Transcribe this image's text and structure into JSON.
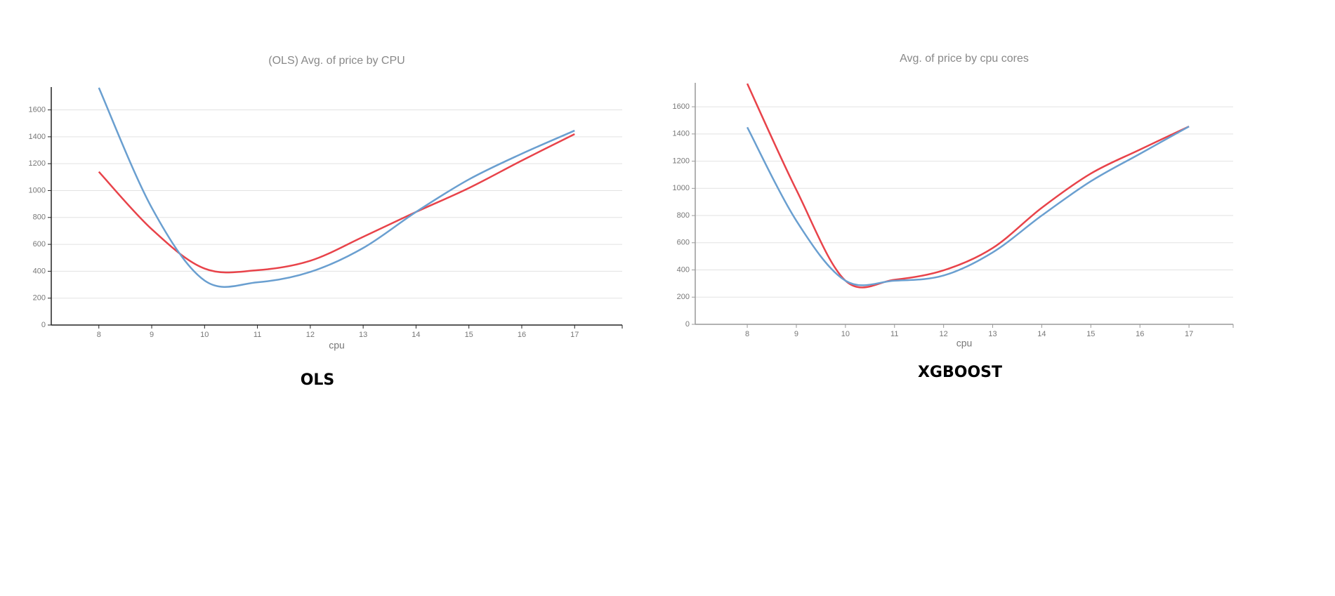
{
  "chart_data": [
    {
      "type": "line",
      "title": "(OLS) Avg. of price by CPU",
      "x_label": "cpu",
      "caption": "OLS",
      "x": [
        8,
        9,
        10,
        11,
        12,
        13,
        14,
        15,
        16,
        17
      ],
      "series": [
        {
          "color": "#e8434a",
          "values": [
            1140,
            713,
            420,
            408,
            478,
            656,
            841,
            1019,
            1223,
            1420
          ]
        },
        {
          "color": "#6a9fd0",
          "values": [
            1765,
            873,
            331,
            318,
            395,
            573,
            841,
            1083,
            1274,
            1446
          ]
        }
      ],
      "xlim": [
        7.1,
        17.9
      ],
      "xticks": [
        8,
        9,
        10,
        11,
        12,
        13,
        14,
        15,
        16,
        17
      ],
      "ylim": [
        0,
        1770
      ],
      "yticks": [
        0,
        200,
        400,
        600,
        800,
        1000,
        1200,
        1400,
        1600
      ],
      "grid": true
    },
    {
      "type": "line",
      "title": "Avg. of price by cpu cores",
      "x_label": "cpu",
      "caption": "XGBOOST",
      "x": [
        8,
        9,
        10,
        11,
        12,
        13,
        14,
        15,
        16,
        17
      ],
      "series": [
        {
          "color": "#e8434a",
          "values": [
            1770,
            989,
            321,
            328,
            397,
            561,
            857,
            1109,
            1285,
            1455
          ]
        },
        {
          "color": "#6a9fd0",
          "values": [
            1449,
            762,
            321,
            321,
            359,
            529,
            800,
            1052,
            1254,
            1455
          ]
        }
      ],
      "xlim": [
        6.94,
        17.9
      ],
      "xticks": [
        8,
        9,
        10,
        11,
        12,
        13,
        14,
        15,
        16,
        17
      ],
      "ylim": [
        0,
        1776
      ],
      "yticks": [
        0,
        200,
        400,
        600,
        800,
        1000,
        1200,
        1400,
        1600
      ],
      "grid": true
    }
  ]
}
